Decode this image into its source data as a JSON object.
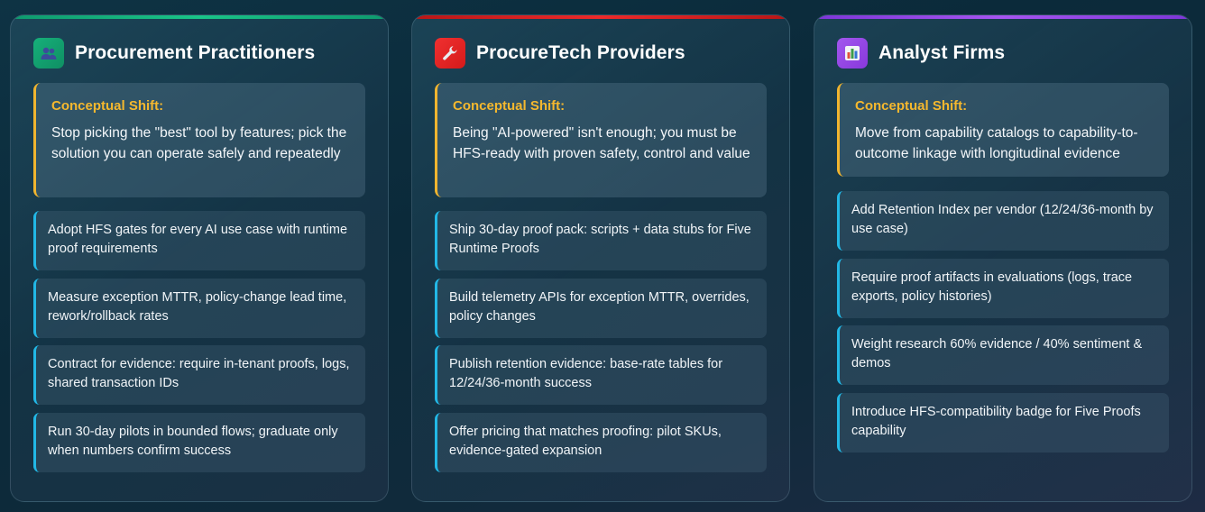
{
  "columns": [
    {
      "title": "Procurement Practitioners",
      "icon": "people-icon",
      "accent": "#17b37a",
      "shift_label": "Conceptual Shift:",
      "shift_text": "Stop picking the \"best\" tool by features; pick the solution you can operate safely and repeatedly",
      "items": [
        "Adopt HFS gates for every AI use case with runtime proof requirements",
        "Measure exception MTTR, policy-change lead time, rework/rollback rates",
        "Contract for evidence: require in-tenant proofs, logs, shared transaction IDs",
        "Run 30-day pilots in bounded flows; graduate only when numbers confirm success"
      ]
    },
    {
      "title": "ProcureTech Providers",
      "icon": "wrench-icon",
      "accent": "#e52424",
      "shift_label": "Conceptual Shift:",
      "shift_text": "Being \"AI-powered\" isn't enough; you must be HFS-ready with proven safety, control and value",
      "items": [
        "Ship 30-day proof pack: scripts + data stubs for Five Runtime Proofs",
        "Build telemetry APIs for exception MTTR, overrides, policy changes",
        "Publish retention evidence: base-rate tables for 12/24/36-month success",
        "Offer pricing that matches proofing: pilot SKUs, evidence-gated expansion"
      ]
    },
    {
      "title": "Analyst Firms",
      "icon": "bar-chart-icon",
      "accent": "#9b4de8",
      "shift_label": "Conceptual Shift:",
      "shift_text": "Move from capability catalogs to capability-to-outcome linkage with longitudinal evidence",
      "items": [
        "Add Retention Index per vendor (12/24/36-month by use case)",
        "Require proof artifacts in evaluations (logs, trace exports, policy histories)",
        "Weight research 60% evidence / 40% sentiment & demos",
        "Introduce HFS-compatibility badge for Five Proofs capability"
      ]
    }
  ]
}
